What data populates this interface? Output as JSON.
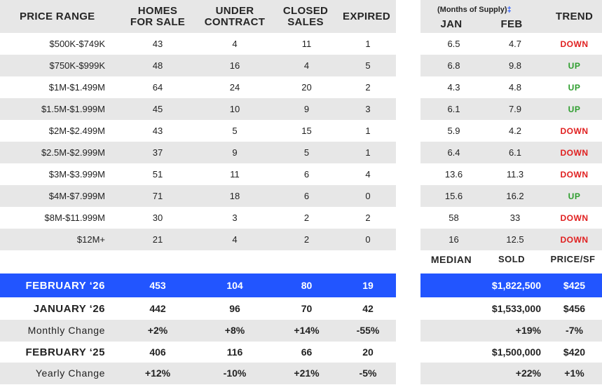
{
  "table": {
    "headers": {
      "price_range": "PRICE RANGE",
      "homes_for_sale_1": "HOMES",
      "homes_for_sale_2": "FOR SALE",
      "under_contract_1": "UNDER",
      "under_contract_2": "CONTRACT",
      "closed_sales_1": "CLOSED",
      "closed_sales_2": "SALES",
      "expired": "EXPIRED"
    },
    "rows": [
      {
        "range": "$500K-$749K",
        "homes": "43",
        "contract": "4",
        "closed": "11",
        "expired": "1"
      },
      {
        "range": "$750K-$999K",
        "homes": "48",
        "contract": "16",
        "closed": "4",
        "expired": "5"
      },
      {
        "range": "$1M-$1.499M",
        "homes": "64",
        "contract": "24",
        "closed": "20",
        "expired": "2"
      },
      {
        "range": "$1.5M-$1.999M",
        "homes": "45",
        "contract": "10",
        "closed": "9",
        "expired": "3"
      },
      {
        "range": "$2M-$2.499M",
        "homes": "43",
        "contract": "5",
        "closed": "15",
        "expired": "1"
      },
      {
        "range": "$2.5M-$2.999M",
        "homes": "37",
        "contract": "9",
        "closed": "5",
        "expired": "1"
      },
      {
        "range": "$3M-$3.999M",
        "homes": "51",
        "contract": "11",
        "closed": "6",
        "expired": "4"
      },
      {
        "range": "$4M-$7.999M",
        "homes": "71",
        "contract": "18",
        "closed": "6",
        "expired": "0"
      },
      {
        "range": "$8M-$11.999M",
        "homes": "30",
        "contract": "3",
        "closed": "2",
        "expired": "2"
      },
      {
        "range": "$12M+",
        "homes": "21",
        "contract": "4",
        "closed": "2",
        "expired": "0"
      }
    ],
    "summary": {
      "feb26": {
        "label": "FEBRUARY ‘26",
        "homes": "453",
        "contract": "104",
        "closed": "80",
        "expired": "19"
      },
      "jan26": {
        "label": "JANUARY ‘26",
        "homes": "442",
        "contract": "96",
        "closed": "70",
        "expired": "42"
      },
      "monthly": {
        "label": "Monthly Change",
        "homes": "+2%",
        "contract": "+8%",
        "closed": "+14%",
        "expired": "-55%"
      },
      "feb25": {
        "label": "FEBRUARY ‘25",
        "homes": "406",
        "contract": "116",
        "closed": "66",
        "expired": "20"
      },
      "yearly": {
        "label": "Yearly Change",
        "homes": "+12%",
        "contract": "-10%",
        "closed": "+21%",
        "expired": "-5%"
      }
    }
  },
  "supply": {
    "headers": {
      "months_of_supply": "(Months of Supply)",
      "footnote_mark": "‡",
      "jan": "JAN",
      "feb": "FEB",
      "trend": "TREND"
    },
    "rows": [
      {
        "jan": "6.5",
        "feb": "4.7",
        "trend": "DOWN"
      },
      {
        "jan": "6.8",
        "feb": "9.8",
        "trend": "UP"
      },
      {
        "jan": "4.3",
        "feb": "4.8",
        "trend": "UP"
      },
      {
        "jan": "6.1",
        "feb": "7.9",
        "trend": "UP"
      },
      {
        "jan": "5.9",
        "feb": "4.2",
        "trend": "DOWN"
      },
      {
        "jan": "6.4",
        "feb": "6.1",
        "trend": "DOWN"
      },
      {
        "jan": "13.6",
        "feb": "11.3",
        "trend": "DOWN"
      },
      {
        "jan": "15.6",
        "feb": "16.2",
        "trend": "UP"
      },
      {
        "jan": "58",
        "feb": "33",
        "trend": "DOWN"
      },
      {
        "jan": "16",
        "feb": "12.5",
        "trend": "DOWN"
      }
    ],
    "colors": {
      "down": "#e02020",
      "up": "#2e9e2e",
      "highlight": "#2255ff",
      "stripe": "#e7e7e7"
    }
  },
  "median": {
    "headers": {
      "median": "MEDIAN",
      "sold": "SOLD",
      "price_sf": "PRICE/SF"
    },
    "feb26": {
      "sold": "$1,822,500",
      "price_sf": "$425"
    },
    "jan26": {
      "sold": "$1,533,000",
      "price_sf": "$456"
    },
    "monthly": {
      "sold": "+19%",
      "price_sf": "-7%"
    },
    "feb25": {
      "sold": "$1,500,000",
      "price_sf": "$420"
    },
    "yearly": {
      "sold": "+22%",
      "price_sf": "+1%"
    }
  }
}
